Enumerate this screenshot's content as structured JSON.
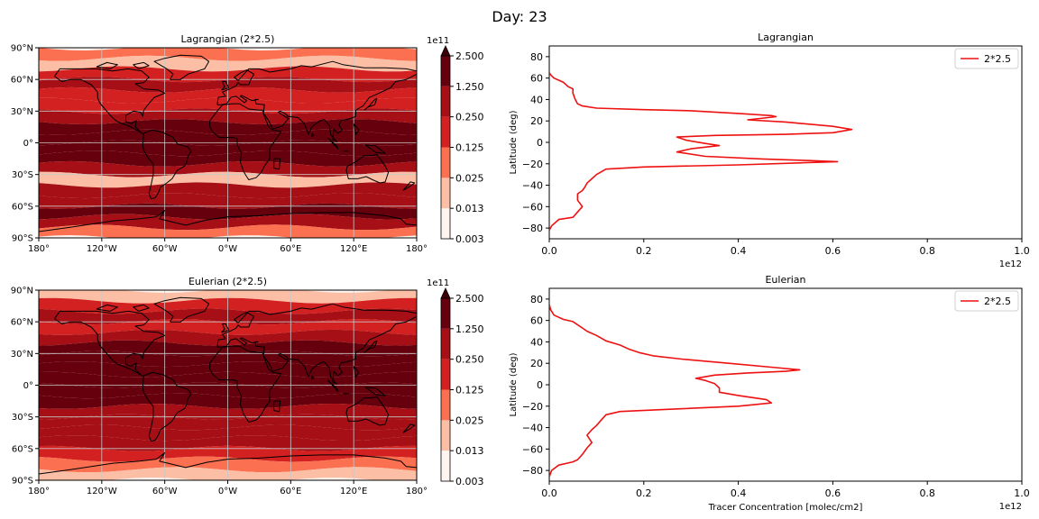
{
  "suptitle": "Day: 23",
  "colors": {
    "levels": [
      "#fff5f0",
      "#fcbea5",
      "#fb7050",
      "#d32020",
      "#a50f15",
      "#67000d"
    ],
    "line": "#ee1111",
    "coast": "#000000",
    "grid": "#c8c8c8"
  },
  "chart_data": [
    {
      "type": "heatmap",
      "title": "Lagrangian (2*2.5)",
      "x_ticks": [
        "180°",
        "120°W",
        "60°W",
        "0°W",
        "60°E",
        "120°E",
        "180°"
      ],
      "y_ticks": [
        "90°N",
        "60°N",
        "30°N",
        "0°",
        "30°S",
        "60°S",
        "90°S"
      ],
      "grid": true,
      "colorbar": {
        "exponent": "1e11",
        "levels": [
          0.003,
          0.013,
          0.025,
          0.125,
          0.25,
          1.25,
          2.5
        ],
        "labels": [
          "0.003",
          "0.013",
          "0.025",
          "0.125",
          "0.250",
          "1.250",
          "2.500"
        ],
        "extend": "max"
      },
      "bands": [
        {
          "lat": 85,
          "level": 2
        },
        {
          "lat": 75,
          "level": 1
        },
        {
          "lat": 65,
          "level": 3
        },
        {
          "lat": 55,
          "level": 4
        },
        {
          "lat": 45,
          "level": 3
        },
        {
          "lat": 35,
          "level": 3
        },
        {
          "lat": 25,
          "level": 4
        },
        {
          "lat": 15,
          "level": 5
        },
        {
          "lat": 5,
          "level": 5
        },
        {
          "lat": -5,
          "level": 5
        },
        {
          "lat": -15,
          "level": 5
        },
        {
          "lat": -25,
          "level": 4
        },
        {
          "lat": -35,
          "level": 1
        },
        {
          "lat": -45,
          "level": 4
        },
        {
          "lat": -55,
          "level": 4
        },
        {
          "lat": -65,
          "level": 5
        },
        {
          "lat": -75,
          "level": 4
        },
        {
          "lat": -85,
          "level": 2
        }
      ]
    },
    {
      "type": "line",
      "title": "Lagrangian",
      "xlabel": "",
      "ylabel": "Latitude (deg)",
      "x_exponent": "1e12",
      "xlim": [
        0,
        1.0
      ],
      "ylim": [
        -90,
        90
      ],
      "x_ticks": [
        "0.0",
        "0.2",
        "0.4",
        "0.6",
        "0.8",
        "1.0"
      ],
      "y_ticks": [
        "80",
        "60",
        "40",
        "20",
        "0",
        "−20",
        "−40",
        "−60",
        "−80"
      ],
      "legend_position": "top-right",
      "series": [
        {
          "name": "2*2.5",
          "x": [
            0.0,
            0.003,
            0.01,
            0.02,
            0.03,
            0.04,
            0.05,
            0.05,
            0.055,
            0.06,
            0.07,
            0.1,
            0.2,
            0.3,
            0.4,
            0.47,
            0.48,
            0.42,
            0.5,
            0.6,
            0.64,
            0.6,
            0.5,
            0.35,
            0.27,
            0.29,
            0.33,
            0.36,
            0.3,
            0.27,
            0.33,
            0.45,
            0.55,
            0.61,
            0.54,
            0.4,
            0.2,
            0.12,
            0.1,
            0.09,
            0.08,
            0.075,
            0.07,
            0.06,
            0.06,
            0.07,
            0.06,
            0.05,
            0.02,
            0.005,
            0.0
          ],
          "y": [
            65,
            63,
            60,
            58,
            56,
            52,
            50,
            46,
            40,
            36,
            34,
            32,
            30.5,
            29.5,
            27,
            25,
            24,
            21,
            19,
            15,
            12,
            9,
            7.5,
            6.5,
            5,
            2,
            -1,
            -3,
            -6,
            -9,
            -13,
            -15.5,
            -17,
            -18,
            -19,
            -21,
            -23,
            -25,
            -30,
            -34,
            -38,
            -42,
            -45,
            -48,
            -54,
            -60,
            -65,
            -70,
            -72,
            -78,
            -82
          ]
        }
      ]
    },
    {
      "type": "heatmap",
      "title": "Eulerian (2*2.5)",
      "x_ticks": [
        "180°",
        "120°W",
        "60°W",
        "0°W",
        "60°E",
        "120°E",
        "180°"
      ],
      "y_ticks": [
        "90°N",
        "60°N",
        "30°N",
        "0°",
        "30°S",
        "60°S",
        "90°S"
      ],
      "grid": true,
      "colorbar": {
        "exponent": "1e11",
        "levels": [
          0.003,
          0.013,
          0.025,
          0.125,
          0.25,
          1.25,
          2.5
        ],
        "labels": [
          "0.003",
          "0.013",
          "0.025",
          "0.125",
          "0.250",
          "1.250",
          "2.500"
        ],
        "extend": "max"
      },
      "bands": [
        {
          "lat": 85,
          "level": 1
        },
        {
          "lat": 75,
          "level": 3
        },
        {
          "lat": 65,
          "level": 4
        },
        {
          "lat": 55,
          "level": 3
        },
        {
          "lat": 45,
          "level": 4
        },
        {
          "lat": 35,
          "level": 5
        },
        {
          "lat": 25,
          "level": 5
        },
        {
          "lat": 15,
          "level": 5
        },
        {
          "lat": 5,
          "level": 5
        },
        {
          "lat": -5,
          "level": 5
        },
        {
          "lat": -15,
          "level": 5
        },
        {
          "lat": -25,
          "level": 4
        },
        {
          "lat": -35,
          "level": 4
        },
        {
          "lat": -45,
          "level": 4
        },
        {
          "lat": -55,
          "level": 4
        },
        {
          "lat": -65,
          "level": 3
        },
        {
          "lat": -75,
          "level": 2
        },
        {
          "lat": -85,
          "level": 1
        }
      ]
    },
    {
      "type": "line",
      "title": "Eulerian",
      "xlabel": "Tracer Concentration [molec/cm2]",
      "ylabel": "Latitude (deg)",
      "x_exponent": "1e12",
      "xlim": [
        0,
        1.0
      ],
      "ylim": [
        -90,
        90
      ],
      "x_ticks": [
        "0.0",
        "0.2",
        "0.4",
        "0.6",
        "0.8",
        "1.0"
      ],
      "y_ticks": [
        "80",
        "60",
        "40",
        "20",
        "0",
        "−20",
        "−40",
        "−60",
        "−80"
      ],
      "legend_position": "top-right",
      "series": [
        {
          "name": "2*2.5",
          "x": [
            0.0,
            0.003,
            0.01,
            0.03,
            0.05,
            0.06,
            0.07,
            0.08,
            0.1,
            0.12,
            0.15,
            0.17,
            0.19,
            0.22,
            0.28,
            0.38,
            0.48,
            0.53,
            0.5,
            0.42,
            0.35,
            0.31,
            0.33,
            0.35,
            0.36,
            0.36,
            0.4,
            0.46,
            0.47,
            0.4,
            0.25,
            0.15,
            0.12,
            0.11,
            0.1,
            0.09,
            0.08,
            0.09,
            0.08,
            0.07,
            0.06,
            0.05,
            0.02,
            0.005,
            0.0
          ],
          "y": [
            75,
            70,
            65,
            61,
            59,
            56,
            53,
            50,
            46,
            41,
            37,
            33,
            30,
            27,
            24,
            20,
            16,
            14,
            12.5,
            11,
            9,
            6,
            4,
            1,
            -3,
            -7,
            -10,
            -14,
            -17,
            -20,
            -23,
            -25,
            -28,
            -33,
            -38,
            -42,
            -47,
            -54,
            -59,
            -65,
            -70,
            -72,
            -75,
            -80,
            -86
          ]
        }
      ]
    }
  ]
}
